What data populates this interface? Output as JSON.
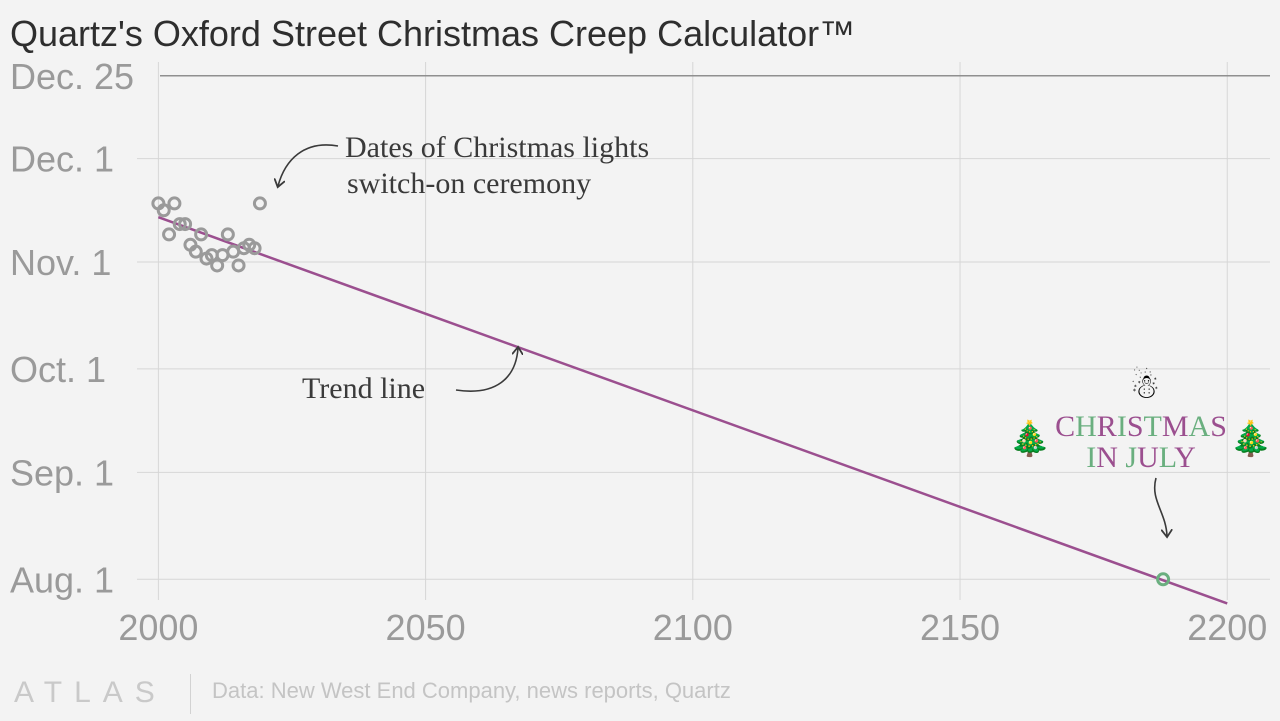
{
  "title": "Quartz's Oxford Street Christmas Creep Calculator™",
  "colors": {
    "trend": "#9b4f8f",
    "points": "#9a9a9a",
    "highlight": "#6aaf7f",
    "gridline": "#d6d6d6",
    "reference_line": "#8f8f8f",
    "xmas_green": "#6aaf7f",
    "xmas_purple": "#9b4f8f"
  },
  "chart_data": {
    "type": "scatter",
    "title": "Quartz's Oxford Street Christmas Creep Calculator™",
    "xlabel": "",
    "ylabel": "",
    "xlim": [
      1996,
      2208
    ],
    "ylim": [
      "2020-07-26",
      "2020-12-29"
    ],
    "x_ticks": [
      2000,
      2050,
      2100,
      2150,
      2200
    ],
    "x_tick_labels": [
      "2000",
      "2050",
      "2100",
      "2150",
      "2200"
    ],
    "y_ticks": [
      "2020-08-01",
      "2020-09-01",
      "2020-10-01",
      "2020-11-01",
      "2020-12-01"
    ],
    "y_tick_labels": [
      "Aug. 1",
      "Sep. 1",
      "Oct. 1",
      "Nov. 1",
      "Dec. 1"
    ],
    "reference_line": {
      "y": "2020-12-25",
      "label": "Dec. 25"
    },
    "grid": true,
    "series": [
      {
        "name": "Dates of Christmas lights switch-on ceremony",
        "type": "scatter",
        "points": [
          {
            "x": 2000,
            "y": "2020-11-18"
          },
          {
            "x": 2001,
            "y": "2020-11-16"
          },
          {
            "x": 2002,
            "y": "2020-11-09"
          },
          {
            "x": 2003,
            "y": "2020-11-18"
          },
          {
            "x": 2004,
            "y": "2020-11-12"
          },
          {
            "x": 2005,
            "y": "2020-11-12"
          },
          {
            "x": 2006,
            "y": "2020-11-06"
          },
          {
            "x": 2007,
            "y": "2020-11-04"
          },
          {
            "x": 2008,
            "y": "2020-11-09"
          },
          {
            "x": 2009,
            "y": "2020-11-02"
          },
          {
            "x": 2010,
            "y": "2020-11-03"
          },
          {
            "x": 2011,
            "y": "2020-10-31"
          },
          {
            "x": 2012,
            "y": "2020-11-03"
          },
          {
            "x": 2013,
            "y": "2020-11-09"
          },
          {
            "x": 2014,
            "y": "2020-11-04"
          },
          {
            "x": 2015,
            "y": "2020-10-31"
          },
          {
            "x": 2016,
            "y": "2020-11-05"
          },
          {
            "x": 2017,
            "y": "2020-11-06"
          },
          {
            "x": 2018,
            "y": "2020-11-05"
          },
          {
            "x": 2019,
            "y": "2020-11-18"
          }
        ]
      },
      {
        "name": "Trend line",
        "type": "line",
        "points": [
          {
            "x": 2000,
            "y": "2020-11-14"
          },
          {
            "x": 2200,
            "y": "2020-07-25"
          }
        ]
      },
      {
        "name": "CHRISTMAS IN JULY",
        "type": "scatter",
        "points": [
          {
            "x": 2188,
            "y": "2020-08-01"
          }
        ]
      }
    ],
    "annotations": [
      {
        "text": [
          "Dates of Christmas lights",
          "switch-on ceremony"
        ],
        "target_series": "Dates of Christmas lights switch-on ceremony"
      },
      {
        "text": [
          "Trend line"
        ],
        "target_series": "Trend line"
      },
      {
        "text": [
          "CHRISTMAS",
          "IN JULY"
        ],
        "target_series": "CHRISTMAS IN JULY"
      }
    ]
  },
  "footer": {
    "logo": "ATLAS",
    "source": "Data: New West End Company, news reports, Quartz"
  }
}
